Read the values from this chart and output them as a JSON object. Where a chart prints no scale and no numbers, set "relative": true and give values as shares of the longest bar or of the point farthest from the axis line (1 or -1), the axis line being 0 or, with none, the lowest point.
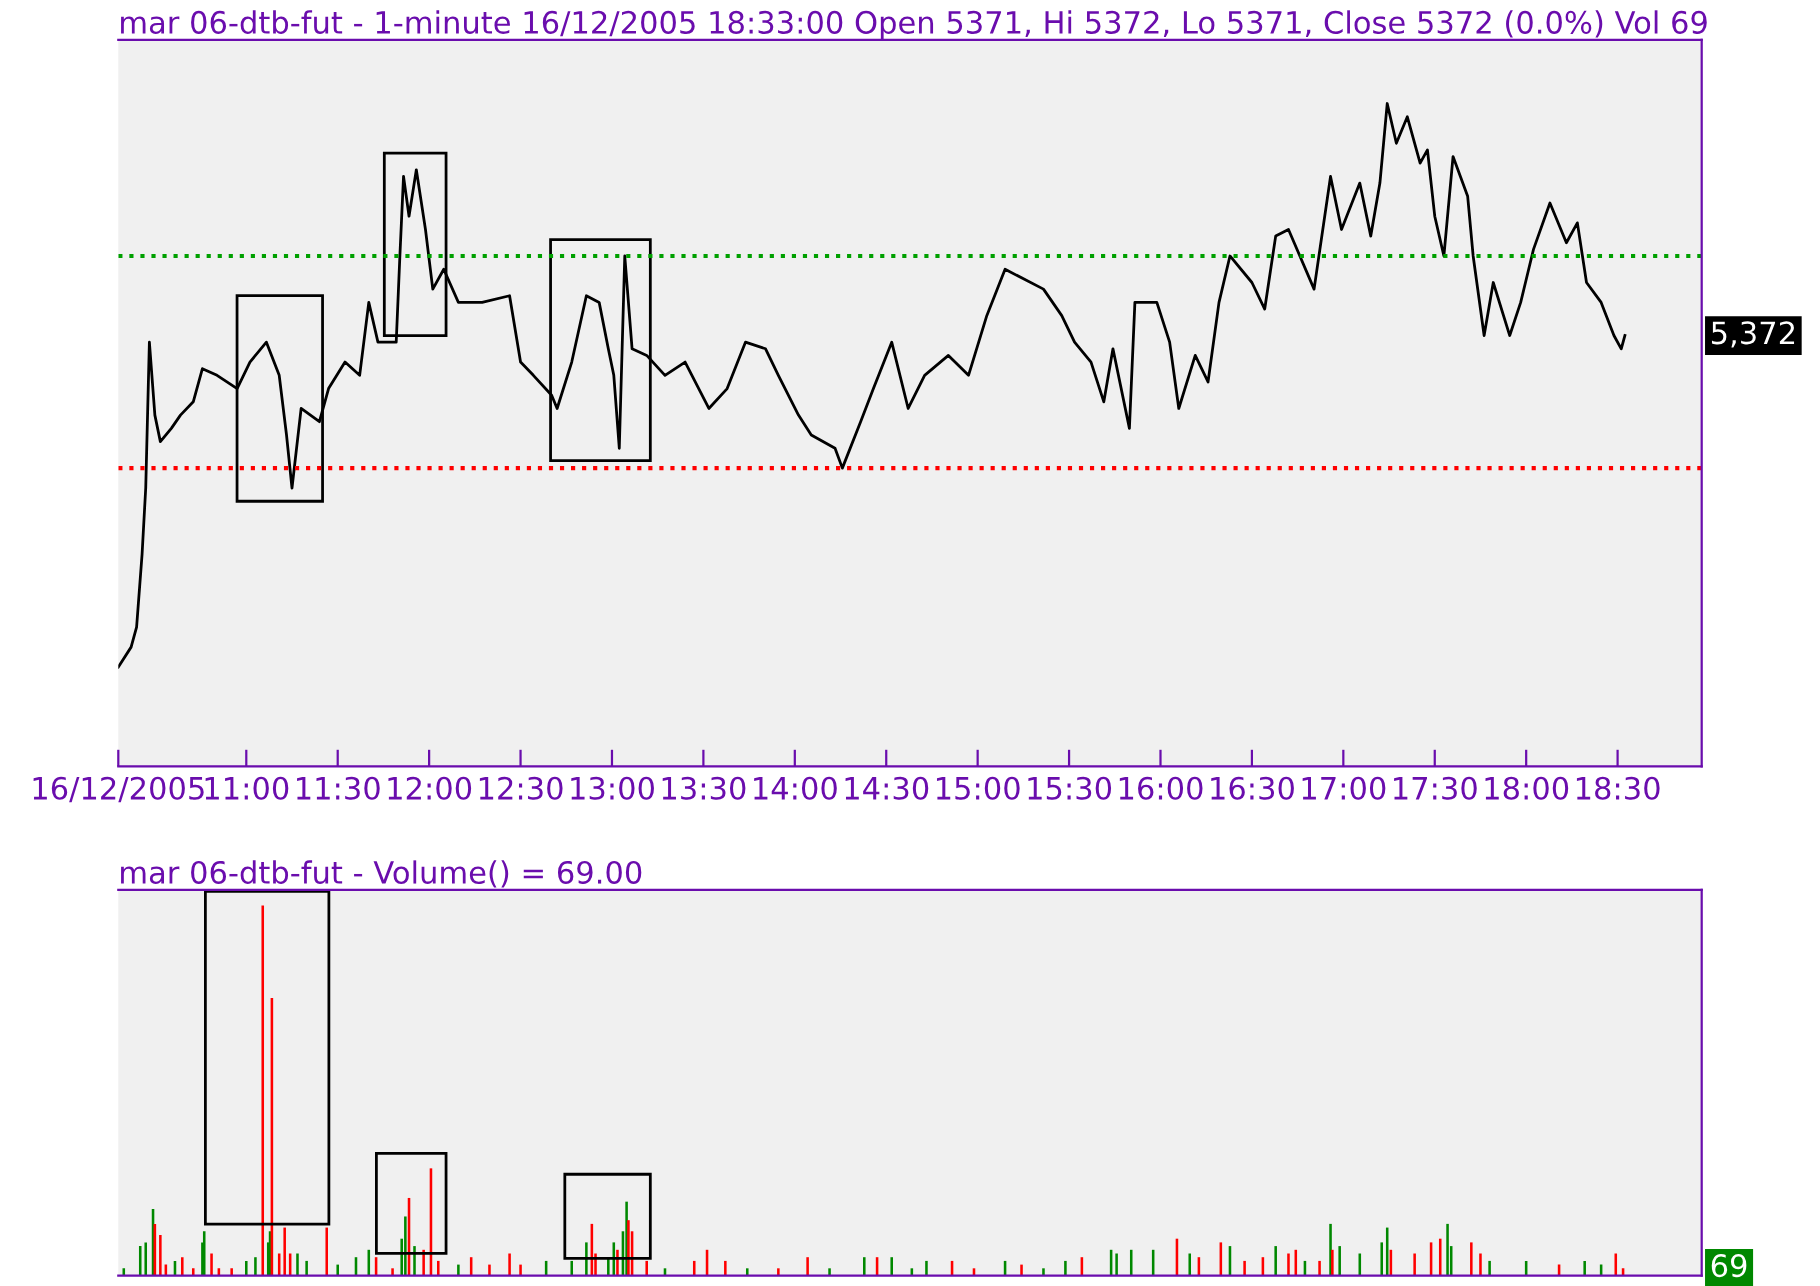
{
  "chart_data": [
    {
      "type": "line",
      "title": "mar 06-dtb-fut - 1-minute 16/12/2005 18:33:00 Open 5371, Hi 5372, Lo 5371, Close 5372 (0.0%) Vol 69",
      "relative": true,
      "tick_labels": "x",
      "grid": false,
      "legend": false,
      "marker": "none",
      "line_style": "solid",
      "xlim": [
        10.3,
        18.96
      ],
      "xticks": [
        {
          "value": 10.3,
          "label": "16/12/2005"
        },
        {
          "value": 11.0,
          "label": "11:00"
        },
        {
          "value": 11.5,
          "label": "11:30"
        },
        {
          "value": 12.0,
          "label": "12:00"
        },
        {
          "value": 12.5,
          "label": "12:30"
        },
        {
          "value": 13.0,
          "label": "13:00"
        },
        {
          "value": 13.5,
          "label": "13:30"
        },
        {
          "value": 14.0,
          "label": "14:00"
        },
        {
          "value": 14.5,
          "label": "14:30"
        },
        {
          "value": 15.0,
          "label": "15:00"
        },
        {
          "value": 15.5,
          "label": "15:30"
        },
        {
          "value": 16.0,
          "label": "16:00"
        },
        {
          "value": 16.5,
          "label": "16:30"
        },
        {
          "value": 17.0,
          "label": "17:00"
        },
        {
          "value": 17.5,
          "label": "17:30"
        },
        {
          "value": 18.0,
          "label": "18:00"
        },
        {
          "value": 18.5,
          "label": "18:30"
        }
      ],
      "series": [
        {
          "color": "#000000",
          "x": [
            10.3,
            10.37,
            10.4,
            10.43,
            10.45,
            10.47,
            10.5,
            10.53,
            10.59,
            10.64,
            10.71,
            10.76,
            10.84,
            10.95,
            11.02,
            11.11,
            11.18,
            11.22,
            11.25,
            11.3,
            11.4,
            11.45,
            11.54,
            11.62,
            11.67,
            11.72,
            11.82,
            11.84,
            11.86,
            11.89,
            11.93,
            11.98,
            12.02,
            12.08,
            12.16,
            12.29,
            12.44,
            12.5,
            12.57,
            12.67,
            12.7,
            12.78,
            12.86,
            12.93,
            12.98,
            13.01,
            13.04,
            13.07,
            13.11,
            13.19,
            13.29,
            13.4,
            13.53,
            13.63,
            13.73,
            13.84,
            13.91,
            14.02,
            14.09,
            14.22,
            14.26,
            14.36,
            14.43,
            14.53,
            14.62,
            14.71,
            14.84,
            14.95,
            15.05,
            15.15,
            15.36,
            15.46,
            15.53,
            15.62,
            15.69,
            15.74,
            15.83,
            15.86,
            15.98,
            16.05,
            16.1,
            16.19,
            16.26,
            16.32,
            16.38,
            16.5,
            16.57,
            16.63,
            16.7,
            16.84,
            16.93,
            16.99,
            17.09,
            17.15,
            17.2,
            17.24,
            17.29,
            17.35,
            17.42,
            17.46,
            17.5,
            17.55,
            17.6,
            17.68,
            17.71,
            17.77,
            17.82,
            17.91,
            17.97,
            18.04,
            18.13,
            18.22,
            18.28,
            18.33,
            18.41,
            18.48,
            18.52,
            18.54
          ],
          "values": [
            0.15,
            0.18,
            0.21,
            0.32,
            0.42,
            0.64,
            0.53,
            0.49,
            0.51,
            0.53,
            0.55,
            0.6,
            0.59,
            0.57,
            0.61,
            0.64,
            0.59,
            0.5,
            0.42,
            0.54,
            0.52,
            0.57,
            0.61,
            0.59,
            0.7,
            0.64,
            0.64,
            0.77,
            0.89,
            0.83,
            0.9,
            0.81,
            0.72,
            0.75,
            0.7,
            0.7,
            0.71,
            0.61,
            0.59,
            0.56,
            0.54,
            0.61,
            0.71,
            0.7,
            0.63,
            0.59,
            0.48,
            0.77,
            0.63,
            0.62,
            0.59,
            0.61,
            0.54,
            0.57,
            0.64,
            0.63,
            0.59,
            0.53,
            0.5,
            0.48,
            0.45,
            0.52,
            0.57,
            0.64,
            0.54,
            0.59,
            0.62,
            0.59,
            0.68,
            0.75,
            0.72,
            0.68,
            0.64,
            0.61,
            0.55,
            0.63,
            0.51,
            0.7,
            0.7,
            0.64,
            0.54,
            0.62,
            0.58,
            0.7,
            0.77,
            0.73,
            0.69,
            0.8,
            0.81,
            0.72,
            0.89,
            0.81,
            0.88,
            0.8,
            0.88,
            1.0,
            0.94,
            0.98,
            0.91,
            0.93,
            0.83,
            0.77,
            0.92,
            0.86,
            0.77,
            0.65,
            0.73,
            0.65,
            0.7,
            0.78,
            0.85,
            0.79,
            0.82,
            0.73,
            0.7,
            0.65,
            0.63,
            0.65
          ]
        }
      ],
      "ref_lines": [
        {
          "axis": "y",
          "value": 0.77,
          "color": "#00a000",
          "line_style": "dotted"
        },
        {
          "axis": "y",
          "value": 0.45,
          "color": "#ff0000",
          "line_style": "dotted"
        }
      ],
      "annotations": [
        "5,372"
      ]
    },
    {
      "type": "bar",
      "title": "mar 06-dtb-fut - Volume() = 69.00",
      "relative": true,
      "grid": false,
      "legend": false,
      "xlim": [
        10.3,
        18.96
      ],
      "x": [
        10.33,
        10.42,
        10.45,
        10.49,
        10.5,
        10.53,
        10.56,
        10.61,
        10.65,
        10.71,
        10.76,
        10.77,
        10.81,
        10.85,
        10.92,
        11.0,
        11.05,
        11.09,
        11.12,
        11.13,
        11.14,
        11.18,
        11.21,
        11.24,
        11.28,
        11.33,
        11.44,
        11.5,
        11.6,
        11.67,
        11.71,
        11.8,
        11.85,
        11.87,
        11.89,
        11.92,
        11.97,
        12.01,
        12.05,
        12.16,
        12.23,
        12.33,
        12.44,
        12.5,
        12.64,
        12.78,
        12.86,
        12.89,
        12.91,
        12.98,
        13.01,
        13.03,
        13.06,
        13.08,
        13.09,
        13.11,
        13.19,
        13.29,
        13.45,
        13.52,
        13.62,
        13.74,
        13.91,
        14.07,
        14.19,
        14.38,
        14.45,
        14.53,
        14.64,
        14.72,
        14.86,
        14.98,
        15.15,
        15.24,
        15.36,
        15.48,
        15.57,
        15.73,
        15.76,
        15.84,
        15.96,
        16.09,
        16.16,
        16.21,
        16.33,
        16.38,
        16.46,
        16.56,
        16.63,
        16.7,
        16.74,
        16.79,
        16.87,
        16.93,
        16.94,
        16.98,
        17.09,
        17.21,
        17.24,
        17.26,
        17.39,
        17.48,
        17.53,
        17.57,
        17.59,
        17.7,
        17.75,
        17.8,
        18.0,
        18.18,
        18.32,
        18.41,
        18.49,
        18.53
      ],
      "values": [
        0.02,
        0.08,
        0.09,
        0.18,
        0.14,
        0.11,
        0.03,
        0.04,
        0.05,
        0.02,
        0.09,
        0.12,
        0.06,
        0.02,
        0.02,
        0.04,
        0.05,
        1.0,
        0.09,
        0.12,
        0.75,
        0.06,
        0.13,
        0.06,
        0.06,
        0.04,
        0.13,
        0.03,
        0.05,
        0.07,
        0.05,
        0.02,
        0.1,
        0.16,
        0.21,
        0.08,
        0.07,
        0.29,
        0.04,
        0.03,
        0.05,
        0.03,
        0.06,
        0.03,
        0.04,
        0.04,
        0.09,
        0.14,
        0.06,
        0.05,
        0.09,
        0.07,
        0.12,
        0.2,
        0.15,
        0.12,
        0.04,
        0.02,
        0.04,
        0.07,
        0.04,
        0.02,
        0.02,
        0.05,
        0.02,
        0.05,
        0.05,
        0.05,
        0.02,
        0.04,
        0.04,
        0.02,
        0.04,
        0.03,
        0.02,
        0.04,
        0.05,
        0.07,
        0.06,
        0.07,
        0.07,
        0.1,
        0.06,
        0.05,
        0.09,
        0.08,
        0.04,
        0.05,
        0.08,
        0.06,
        0.07,
        0.04,
        0.04,
        0.14,
        0.07,
        0.08,
        0.06,
        0.09,
        0.13,
        0.07,
        0.06,
        0.09,
        0.1,
        0.14,
        0.08,
        0.09,
        0.06,
        0.04,
        0.04,
        0.03,
        0.04,
        0.03,
        0.06,
        0.02
      ],
      "colors": [
        "#008800",
        "#008800",
        "#008800",
        "#008800",
        "#ff0000",
        "#ff0000",
        "#ff0000",
        "#008800",
        "#ff0000",
        "#ff0000",
        "#008800",
        "#008800",
        "#ff0000",
        "#ff0000",
        "#ff0000",
        "#008800",
        "#008800",
        "#ff0000",
        "#008800",
        "#008800",
        "#ff0000",
        "#ff0000",
        "#ff0000",
        "#ff0000",
        "#008800",
        "#008800",
        "#ff0000",
        "#008800",
        "#008800",
        "#008800",
        "#ff0000",
        "#ff0000",
        "#008800",
        "#008800",
        "#ff0000",
        "#008800",
        "#ff0000",
        "#ff0000",
        "#ff0000",
        "#008800",
        "#ff0000",
        "#ff0000",
        "#ff0000",
        "#ff0000",
        "#008800",
        "#008800",
        "#008800",
        "#ff0000",
        "#ff0000",
        "#008800",
        "#008800",
        "#ff0000",
        "#008800",
        "#008800",
        "#ff0000",
        "#ff0000",
        "#ff0000",
        "#008800",
        "#ff0000",
        "#ff0000",
        "#ff0000",
        "#008800",
        "#ff0000",
        "#ff0000",
        "#008800",
        "#008800",
        "#ff0000",
        "#008800",
        "#008800",
        "#008800",
        "#ff0000",
        "#ff0000",
        "#008800",
        "#ff0000",
        "#008800",
        "#008800",
        "#ff0000",
        "#008800",
        "#008800",
        "#008800",
        "#008800",
        "#ff0000",
        "#008800",
        "#ff0000",
        "#ff0000",
        "#008800",
        "#ff0000",
        "#ff0000",
        "#008800",
        "#ff0000",
        "#ff0000",
        "#008800",
        "#ff0000",
        "#008800",
        "#ff0000",
        "#008800",
        "#008800",
        "#008800",
        "#008800",
        "#ff0000",
        "#ff0000",
        "#ff0000",
        "#ff0000",
        "#008800",
        "#008800",
        "#ff0000",
        "#ff0000",
        "#008800",
        "#008800",
        "#ff0000",
        "#008800",
        "#008800",
        "#ff0000",
        "#ff0000"
      ],
      "annotations": [
        "69"
      ]
    }
  ]
}
